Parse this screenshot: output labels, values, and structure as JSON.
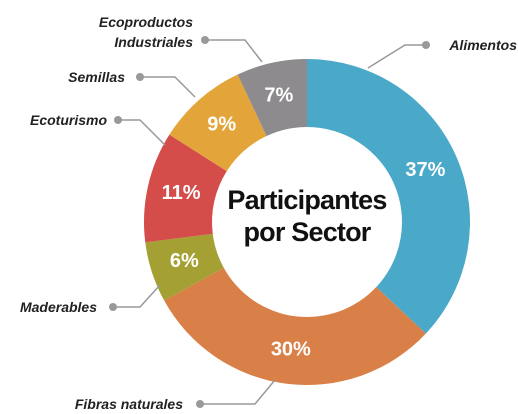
{
  "chart_data": {
    "type": "pie",
    "title": "Participantes por Sector",
    "categories": [
      "Alimentos",
      "Fibras naturales",
      "Maderables",
      "Ecoturismo",
      "Semillas",
      "Ecoproductos Industriales"
    ],
    "values": [
      37,
      30,
      6,
      11,
      9,
      7
    ],
    "value_labels": [
      "37%",
      "30%",
      "6%",
      "11%",
      "9%",
      "7%"
    ],
    "colors": [
      "#4aa8c8",
      "#d98048",
      "#a4a034",
      "#d44d4b",
      "#e3a53a",
      "#8e8b8f"
    ]
  }
}
